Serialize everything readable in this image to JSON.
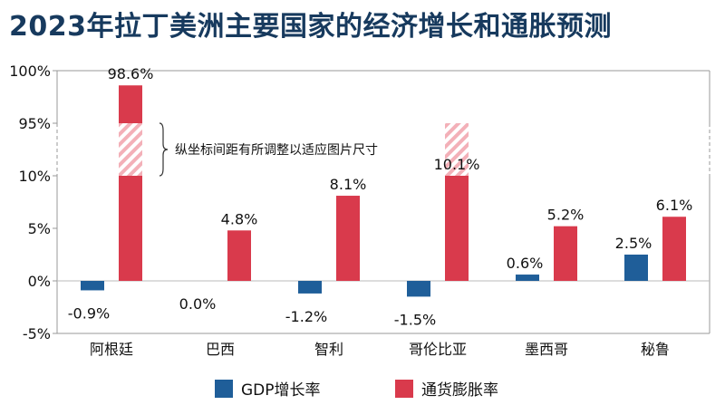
{
  "title": "2023年拉丁美洲主要国家的经济增长和通胀预测",
  "chart_data": {
    "type": "bar",
    "categories": [
      "阿根廷",
      "巴西",
      "智利",
      "哥伦比亚",
      "墨西哥",
      "秘鲁"
    ],
    "series": [
      {
        "name": "GDP增长率",
        "values": [
          -0.9,
          0.0,
          -1.2,
          -1.5,
          0.6,
          2.5
        ],
        "labels": [
          "-0.9%",
          "0.0%",
          "-1.2%",
          "-1.5%",
          "0.6%",
          "2.5%"
        ],
        "color": "#1f5e99"
      },
      {
        "name": "通货膨胀率",
        "values": [
          98.6,
          4.8,
          8.1,
          10.1,
          5.2,
          6.1
        ],
        "labels": [
          "98.6%",
          "4.8%",
          "8.1%",
          "10.1%",
          "5.2%",
          "6.1%"
        ],
        "color": "#d93a4c"
      }
    ],
    "yticks": [
      "100%",
      "95%",
      "10%",
      "5%",
      "0%",
      "-5%"
    ],
    "ytick_values": [
      100,
      95,
      10,
      5,
      0,
      -5
    ],
    "axis_break": {
      "from": 10,
      "to": 95
    },
    "annotation": "纵坐标间距有所调整以适应图片尺寸",
    "grid": false,
    "legend_position": "bottom"
  }
}
